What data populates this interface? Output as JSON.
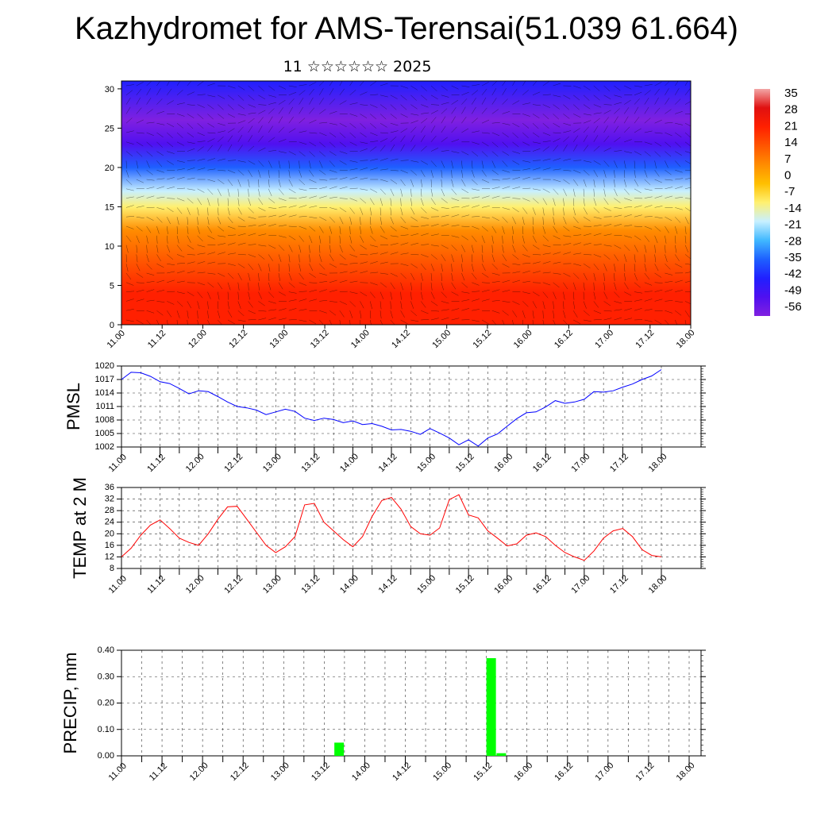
{
  "title": "Kazhydromet for AMS-Terensai(51.039 61.664)",
  "subtitle": "11 ☆☆☆☆☆☆ 2025",
  "time_labels": [
    "11.00",
    "11.12",
    "12.00",
    "12.12",
    "13.00",
    "13.12",
    "14.00",
    "14.12",
    "15.00",
    "15.12",
    "16.00",
    "16.12",
    "17.00",
    "17.12",
    "18.00"
  ],
  "chart_data": [
    {
      "type": "heatmap",
      "title": "",
      "ylabel": "",
      "ylim": [
        0,
        31
      ],
      "yticks": [
        0,
        5,
        10,
        15,
        20,
        25,
        30
      ],
      "overlay": "wind barbs",
      "colorbar": {
        "labels": [
          "35",
          "28",
          "21",
          "14",
          "7",
          "0",
          "-7",
          "-14",
          "-21",
          "-28",
          "-35",
          "-42",
          "-49",
          "-56"
        ],
        "colors": [
          "#f2a6a6",
          "#e01010",
          "#ff2000",
          "#ff5500",
          "#ff8c00",
          "#ffc000",
          "#fff070",
          "#c8f0ff",
          "#40b8ff",
          "#1e60ff",
          "#2020ff",
          "#5010f0",
          "#8020e0"
        ],
        "range": [
          -60,
          38
        ]
      },
      "field_profile": [
        {
          "height": 0,
          "value": 24
        },
        {
          "height": 4,
          "value": 18
        },
        {
          "height": 8,
          "value": 10
        },
        {
          "height": 12,
          "value": 3
        },
        {
          "height": 15,
          "value": -11
        },
        {
          "height": 17,
          "value": -22
        },
        {
          "height": 20,
          "value": -38
        },
        {
          "height": 23,
          "value": -52
        },
        {
          "height": 26,
          "value": -58
        },
        {
          "height": 31,
          "value": -45
        }
      ]
    },
    {
      "type": "line",
      "ylabel": "PMSL",
      "ylim": [
        1002,
        1020
      ],
      "yticks": [
        1002,
        1005,
        1008,
        1011,
        1014,
        1017,
        1020
      ],
      "color": "#0000ff",
      "x": [
        0,
        3,
        6,
        9,
        12,
        15,
        18,
        21,
        24,
        27,
        30,
        33,
        36,
        39,
        42,
        45,
        48,
        51,
        54,
        57,
        60,
        63,
        66,
        69,
        72,
        75,
        78,
        81,
        84,
        87,
        90,
        93,
        96,
        99,
        102,
        105,
        108,
        111,
        114,
        117,
        120,
        123,
        126,
        129,
        132,
        135,
        138,
        141,
        144,
        147,
        150,
        153,
        156,
        159,
        162,
        165,
        168
      ],
      "values": [
        1017.0,
        1018.6,
        1018.5,
        1017.7,
        1016.5,
        1016.1,
        1015.0,
        1013.8,
        1014.5,
        1014.3,
        1013.2,
        1012.0,
        1011.0,
        1010.7,
        1010.2,
        1009.2,
        1009.8,
        1010.4,
        1009.9,
        1008.4,
        1007.9,
        1008.4,
        1008.1,
        1007.4,
        1007.8,
        1007.0,
        1007.2,
        1006.6,
        1005.8,
        1005.9,
        1005.5,
        1004.8,
        1006.1,
        1005.1,
        1004.0,
        1002.5,
        1003.6,
        1002.2,
        1004.0,
        1004.9,
        1006.6,
        1008.3,
        1009.6,
        1009.8,
        1010.9,
        1012.3,
        1011.7,
        1012.0,
        1012.6,
        1014.3,
        1014.2,
        1014.5,
        1015.3,
        1016.0,
        1017.0,
        1017.8,
        1019.2
      ],
      "grid": true
    },
    {
      "type": "line",
      "ylabel": "TEMP at 2 M",
      "ylim": [
        8,
        36
      ],
      "yticks": [
        8,
        12,
        16,
        20,
        24,
        28,
        32,
        36
      ],
      "color": "#ff0000",
      "x": [
        0,
        3,
        6,
        9,
        12,
        15,
        18,
        21,
        24,
        27,
        30,
        33,
        36,
        39,
        42,
        45,
        48,
        51,
        54,
        57,
        60,
        63,
        66,
        69,
        72,
        75,
        78,
        81,
        84,
        87,
        90,
        93,
        96,
        99,
        102,
        105,
        108,
        111,
        114,
        117,
        120,
        123,
        126,
        129,
        132,
        135,
        138,
        141,
        144,
        147,
        150,
        153,
        156,
        159,
        162,
        165,
        168
      ],
      "values": [
        12.0,
        15.0,
        19.5,
        23.0,
        24.8,
        21.8,
        18.5,
        17.0,
        16.0,
        20.0,
        25.0,
        29.3,
        29.5,
        25.0,
        20.5,
        16.0,
        13.5,
        15.5,
        19.0,
        30.0,
        30.5,
        24.0,
        21.0,
        18.0,
        15.5,
        19.0,
        26.0,
        31.5,
        32.6,
        28.5,
        22.5,
        20.0,
        19.5,
        22.0,
        31.8,
        33.5,
        26.5,
        25.5,
        21.0,
        18.5,
        15.8,
        16.5,
        19.5,
        20.3,
        19.0,
        16.0,
        13.5,
        12.0,
        10.8,
        14.0,
        18.5,
        21.0,
        21.8,
        19.0,
        14.5,
        12.5,
        12.0
      ],
      "grid": true
    },
    {
      "type": "bar",
      "ylabel": "PRECIP, mm",
      "ylim": [
        0,
        0.4
      ],
      "yticks": [
        "0.00",
        "0.10",
        "0.20",
        "0.30",
        "0.40"
      ],
      "color": "#00ff00",
      "bars": [
        {
          "x": 63,
          "value": 0.05
        },
        {
          "x": 108,
          "value": 0.37
        },
        {
          "x": 111,
          "value": 0.01
        }
      ],
      "grid": true
    }
  ]
}
